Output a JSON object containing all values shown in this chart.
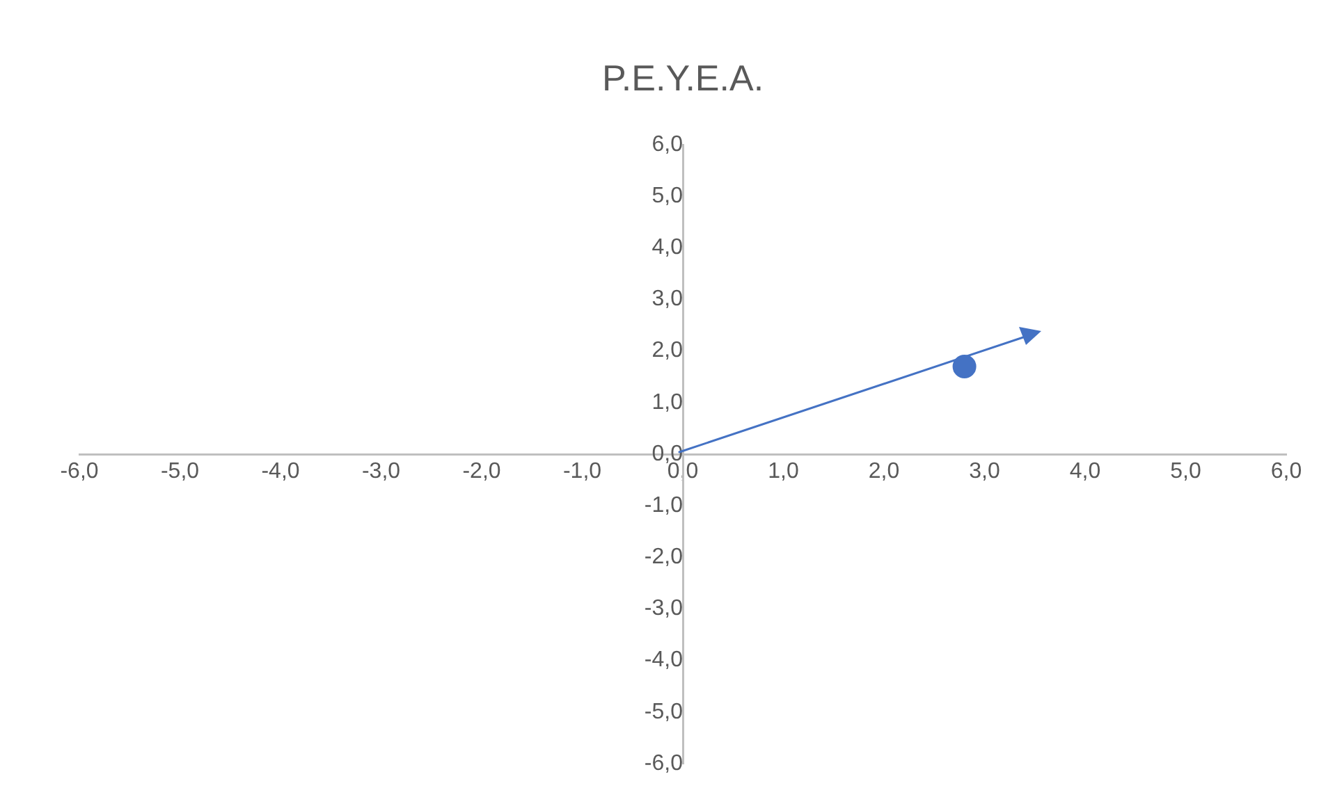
{
  "chart_data": {
    "type": "scatter",
    "title": "P.E.Y.E.A.",
    "xlim": [
      -6,
      6
    ],
    "ylim": [
      -6,
      6
    ],
    "xticks": [
      {
        "value": -6,
        "label": "-6,0"
      },
      {
        "value": -5,
        "label": "-5,0"
      },
      {
        "value": -4,
        "label": "-4,0"
      },
      {
        "value": -3,
        "label": "-3,0"
      },
      {
        "value": -2,
        "label": "-2,0"
      },
      {
        "value": -1,
        "label": "-1,0"
      },
      {
        "value": 0,
        "label": "0,0"
      },
      {
        "value": 1,
        "label": "1,0"
      },
      {
        "value": 2,
        "label": "2,0"
      },
      {
        "value": 3,
        "label": "3,0"
      },
      {
        "value": 4,
        "label": "4,0"
      },
      {
        "value": 5,
        "label": "5,0"
      },
      {
        "value": 6,
        "label": "6,0"
      }
    ],
    "yticks": [
      {
        "value": -6,
        "label": "-6,0"
      },
      {
        "value": -5,
        "label": "-5,0"
      },
      {
        "value": -4,
        "label": "-4,0"
      },
      {
        "value": -3,
        "label": "-3,0"
      },
      {
        "value": -2,
        "label": "-2,0"
      },
      {
        "value": -1,
        "label": "-1,0"
      },
      {
        "value": 0,
        "label": "0,0"
      },
      {
        "value": 1,
        "label": "1,0"
      },
      {
        "value": 2,
        "label": "2,0"
      },
      {
        "value": 3,
        "label": "3,0"
      },
      {
        "value": 4,
        "label": "4,0"
      },
      {
        "value": 5,
        "label": "5,0"
      },
      {
        "value": 6,
        "label": "6,0"
      }
    ],
    "grid": false,
    "legend": false,
    "marker": "circle",
    "series": [
      {
        "x": [
          2.8
        ],
        "values": [
          1.7
        ],
        "color": "#4472c4"
      }
    ]
  }
}
